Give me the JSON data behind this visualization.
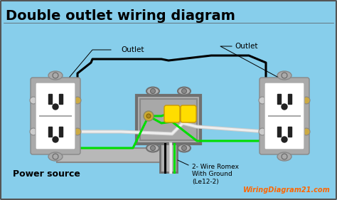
{
  "bg_color": "#87CEEB",
  "title": "Double outlet wiring diagram",
  "title_fontsize": 14,
  "title_color": "black",
  "title_weight": "bold",
  "watermark": "WiringDiagram21.com",
  "watermark_color": "#FF6600",
  "label_outlet_left": "Outlet",
  "label_outlet_right": "Outlet",
  "label_power": "Power source",
  "label_romex": "2- Wire Romex\nWith Ground\n(Le12-2)",
  "wire_black": "black",
  "wire_green": "#00dd00",
  "wire_white": "#cccccc",
  "wire_bare": "#ccaa00"
}
